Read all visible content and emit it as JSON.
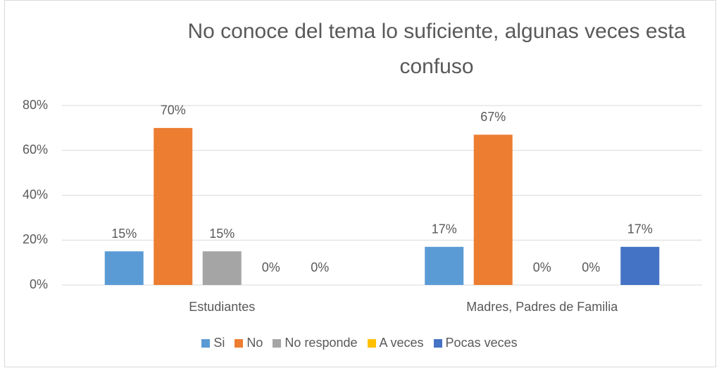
{
  "chart_data": {
    "type": "bar",
    "title": "No conoce del tema lo suficiente, algunas veces esta confuso",
    "categories": [
      "Estudiantes",
      "Madres, Padres de Familia"
    ],
    "series": [
      {
        "name": "Si",
        "color": "#5b9bd5",
        "values": [
          15,
          17
        ],
        "value_labels": [
          "15%",
          "17%"
        ]
      },
      {
        "name": "No",
        "color": "#ed7d31",
        "values": [
          70,
          67
        ],
        "value_labels": [
          "70%",
          "67%"
        ]
      },
      {
        "name": "No responde",
        "color": "#a5a5a5",
        "values": [
          15,
          0
        ],
        "value_labels": [
          "15%",
          "0%"
        ]
      },
      {
        "name": "A veces",
        "color": "#ffc000",
        "values": [
          0,
          0
        ],
        "value_labels": [
          "0%",
          "0%"
        ]
      },
      {
        "name": "Pocas veces",
        "color": "#4472c4",
        "values": [
          0,
          17
        ],
        "value_labels": [
          "0%",
          "17%"
        ]
      }
    ],
    "ylim": [
      0,
      80
    ],
    "yticks": [
      {
        "value": 0,
        "label": "0%"
      },
      {
        "value": 20,
        "label": "20%"
      },
      {
        "value": 40,
        "label": "40%"
      },
      {
        "value": 60,
        "label": "60%"
      },
      {
        "value": 80,
        "label": "80%"
      }
    ],
    "grid": true,
    "legend": "bottom"
  }
}
